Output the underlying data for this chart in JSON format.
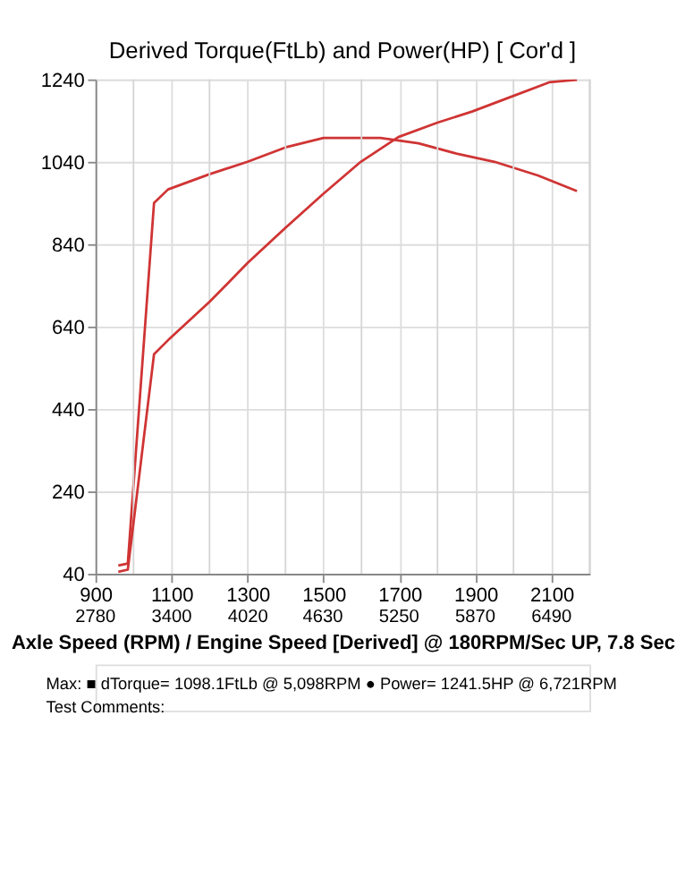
{
  "chart_data": {
    "type": "line",
    "title": "Derived Torque(FtLb) and Power(HP)     [ Cor'd ]",
    "xlabel": "Axle Speed (RPM) / Engine Speed [Derived] @ 180RPM/Sec UP, 7.8 Sec",
    "xlim": [
      900,
      2200
    ],
    "ylim": [
      40,
      1240
    ],
    "xticks": [
      900,
      {
        "value": 1000,
        "label": null
      },
      1100,
      {
        "value": 1200,
        "label": null
      },
      1300,
      {
        "value": 1400,
        "label": null
      },
      1500,
      {
        "value": 1600,
        "label": null
      },
      1700,
      {
        "value": 1800,
        "label": null
      },
      1900,
      {
        "value": 2000,
        "label": null
      },
      2100,
      {
        "value": 2200,
        "label": null
      }
    ],
    "x2lim": [
      2780,
      6799
    ],
    "x2ticks": [
      2780,
      3400,
      4020,
      4630,
      5250,
      5870,
      6490
    ],
    "yticks": [
      40,
      240,
      440,
      640,
      840,
      1040,
      1240
    ],
    "grid": true,
    "legend": false,
    "marker": "none",
    "line_style": "solid",
    "series": [
      {
        "color": "#d03434",
        "x": [
          960,
          985,
          1054,
          1091,
          1200,
          1300,
          1400,
          1500,
          1650,
          1750,
          1850,
          1950,
          2064,
          2167
        ],
        "values": [
          60,
          65,
          940,
          973,
          1010,
          1040,
          1075,
          1098,
          1098,
          1085,
          1060,
          1040,
          1007,
          969
        ]
      },
      {
        "color": "#d03434",
        "x": [
          960,
          985,
          1054,
          1091,
          1200,
          1301,
          1400,
          1499,
          1598,
          1697,
          1800,
          1891,
          2000,
          2094,
          2167
        ],
        "values": [
          45,
          50,
          573,
          607,
          700,
          795,
          880,
          962,
          1040,
          1100,
          1135,
          1162,
          1200,
          1233,
          1239
        ]
      }
    ],
    "annotations": [
      "Max:  ■ dTorque= 1098.1FtLb @ 5,098RPM     ● Power= 1241.5HP @ 6,721RPM",
      "Test Comments:"
    ]
  }
}
